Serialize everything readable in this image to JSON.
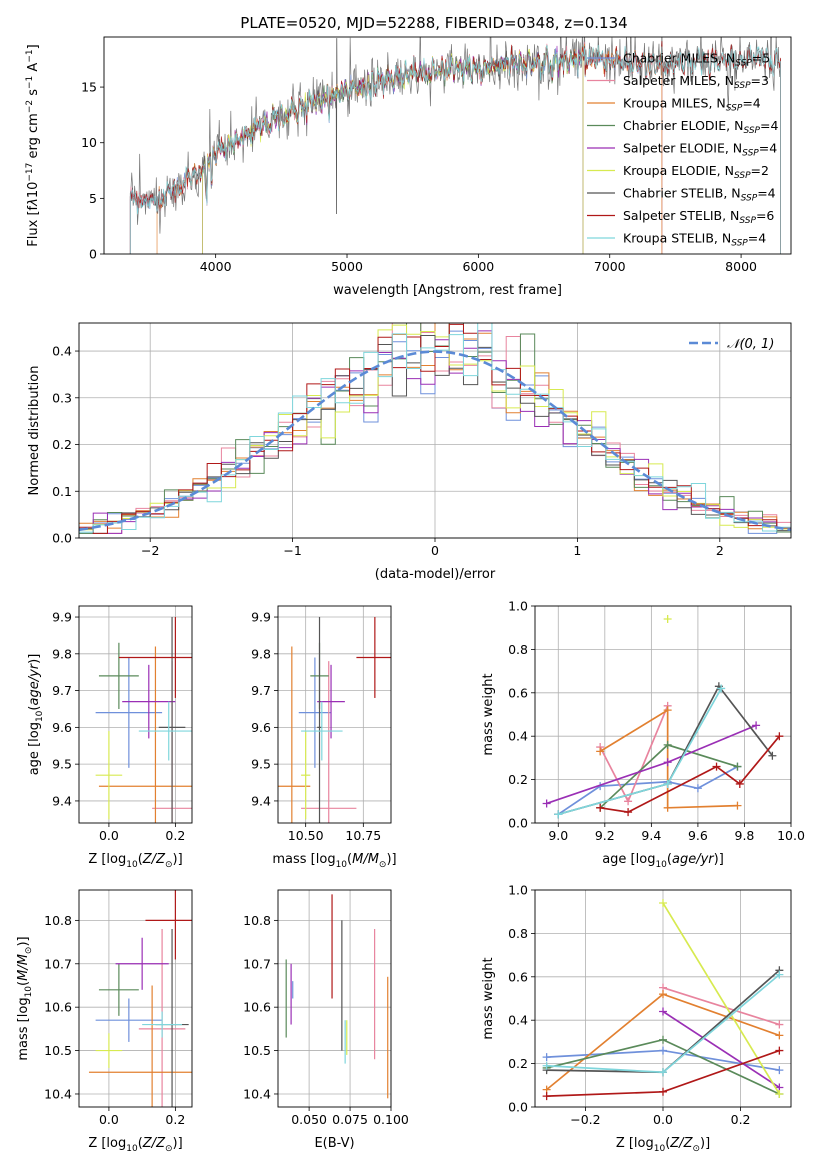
{
  "figure_title": "PLATE=0520, MJD=52288, FIBERID=0348, z=0.134",
  "colors": {
    "Chabrier MILES": "#6f90db",
    "Salpeter MILES": "#e8849e",
    "Kroupa MILES": "#e28030",
    "Chabrier ELODIE": "#5a8a5a",
    "Salpeter ELODIE": "#9a2fb5",
    "Kroupa ELODIE": "#d7ea50",
    "Chabrier STELIB": "#555555",
    "Salpeter STELIB": "#b01818",
    "Kroupa STELIB": "#7fd6dc"
  },
  "chart_data": [
    {
      "id": "spectrum",
      "type": "line",
      "title": "PLATE=0520, MJD=52288, FIBERID=0348, z=0.134",
      "xlabel": "wavelength [Angstrom, rest frame]",
      "ylabel_html": "Flux [f<tspan font-style='italic'>λ</tspan>10<tspan dy='-5' font-size='9'>−17</tspan><tspan dy='5'> erg cm</tspan><tspan dy='-5' font-size='9'>−2</tspan><tspan dy='5'> s</tspan><tspan dy='-5' font-size='9'>−1</tspan><tspan dy='5'> A</tspan><tspan dy='-5' font-size='9'>−1</tspan><tspan dy='5'>]</tspan>",
      "xlim": [
        3150,
        8380
      ],
      "ylim": [
        0,
        19.5
      ],
      "xticks": [
        4000,
        5000,
        6000,
        7000,
        8000
      ],
      "yticks": [
        0,
        5,
        10,
        15
      ],
      "continuum": {
        "x": [
          3350,
          3500,
          3700,
          3800,
          3900,
          4000,
          4200,
          4500,
          4800,
          5000,
          5200,
          5500,
          5800,
          6000,
          6300,
          6600,
          6900,
          7200,
          7500,
          7800,
          8100,
          8300
        ],
        "y": [
          5.2,
          4.6,
          5.9,
          6.8,
          7.6,
          9.0,
          10.4,
          12.4,
          13.8,
          14.8,
          15.5,
          16.2,
          16.6,
          16.8,
          17.2,
          17.3,
          17.5,
          17.2,
          17.0,
          17.3,
          17.4,
          17.5
        ]
      },
      "legend": [
        {
          "label": "Chabrier MILES",
          "n": "5"
        },
        {
          "label": "Salpeter MILES",
          "n": "3"
        },
        {
          "label": "Kroupa MILES",
          "n": "4"
        },
        {
          "label": "Chabrier ELODIE",
          "n": "4"
        },
        {
          "label": "Salpeter ELODIE",
          "n": "4"
        },
        {
          "label": "Kroupa ELODIE",
          "n": "2"
        },
        {
          "label": "Chabrier STELIB",
          "n": "4"
        },
        {
          "label": "Salpeter STELIB",
          "n": "6"
        },
        {
          "label": "Kroupa STELIB",
          "n": "4"
        }
      ],
      "legend_n_prefix": "N",
      "legend_n_sub": "SSP",
      "model_ranges": {
        "Chabrier MILES": [
          3350,
          7400
        ],
        "Salpeter MILES": [
          3350,
          7400
        ],
        "Kroupa MILES": [
          3550,
          7400
        ],
        "Chabrier ELODIE": [
          3900,
          6800
        ],
        "Salpeter ELODIE": [
          3900,
          6800
        ],
        "Kroupa ELODIE": [
          3900,
          6800
        ],
        "Chabrier STELIB": [
          3350,
          8300
        ],
        "Salpeter STELIB": [
          3350,
          8300
        ],
        "Kroupa STELIB": [
          3350,
          8300
        ]
      }
    },
    {
      "id": "residuals",
      "type": "histogram",
      "xlabel": "(data-model)/error",
      "ylabel": "Normed distribution",
      "xlim": [
        -2.5,
        2.5
      ],
      "ylim": [
        0,
        0.46
      ],
      "xticks": [
        -2,
        -1,
        0,
        1,
        2
      ],
      "yticks": [
        0.0,
        0.1,
        0.2,
        0.3,
        0.4
      ],
      "bin_width": 0.1,
      "reference": {
        "label": "𝒩(0, 1)",
        "mean": 0,
        "sigma": 1
      }
    },
    {
      "id": "Z_vs_age",
      "type": "errorbar",
      "xlabel": "Z [log10(Z/Z⊙)]",
      "ylabel": "age  [log10(age/yr)]",
      "xlim": [
        -0.09,
        0.25
      ],
      "ylim": [
        9.34,
        9.93
      ],
      "xticks": [
        0.0,
        0.2
      ],
      "yticks": [
        9.4,
        9.5,
        9.6,
        9.7,
        9.8,
        9.9
      ],
      "points": [
        {
          "model": "Chabrier MILES",
          "x": 0.06,
          "xerr": 0.1,
          "y": 9.64,
          "yerr": 0.15
        },
        {
          "model": "Salpeter MILES",
          "x": 0.19,
          "xerr": 0.06,
          "y": 9.38,
          "yerr": 0.4
        },
        {
          "model": "Kroupa MILES",
          "x": 0.14,
          "xerr": 0.17,
          "y": 9.44,
          "yerr": 0.38
        },
        {
          "model": "Chabrier ELODIE",
          "x": 0.03,
          "xerr": 0.06,
          "y": 9.74,
          "yerr": 0.09
        },
        {
          "model": "Salpeter ELODIE",
          "x": 0.12,
          "xerr": 0.08,
          "y": 9.67,
          "yerr": 0.1
        },
        {
          "model": "Kroupa ELODIE",
          "x": 0.0,
          "xerr": 0.04,
          "y": 9.47,
          "yerr": 0.12
        },
        {
          "model": "Chabrier STELIB",
          "x": 0.19,
          "xerr": 0.04,
          "y": 9.6,
          "yerr": 0.3
        },
        {
          "model": "Salpeter STELIB",
          "x": 0.2,
          "xerr": 0.17,
          "y": 9.79,
          "yerr": 0.11
        },
        {
          "model": "Kroupa STELIB",
          "x": 0.18,
          "xerr": 0.09,
          "y": 9.59,
          "yerr": 0.08
        }
      ]
    },
    {
      "id": "mass_vs_age",
      "type": "errorbar",
      "xlabel": "mass [log10(M/M⊙)]",
      "ylabel": "",
      "xlim": [
        10.38,
        10.87
      ],
      "ylim": [
        9.34,
        9.93
      ],
      "xticks": [
        10.5,
        10.75
      ],
      "yticks": [
        9.4,
        9.5,
        9.6,
        9.7,
        9.8,
        9.9
      ],
      "points": [
        {
          "model": "Chabrier MILES",
          "x": 10.54,
          "xerr": 0.07,
          "y": 9.64,
          "yerr": 0.15
        },
        {
          "model": "Salpeter MILES",
          "x": 10.6,
          "xerr": 0.12,
          "y": 9.38,
          "yerr": 0.4
        },
        {
          "model": "Kroupa MILES",
          "x": 10.44,
          "xerr": 0.08,
          "y": 9.44,
          "yerr": 0.38
        },
        {
          "model": "Chabrier ELODIE",
          "x": 10.56,
          "xerr": 0.04,
          "y": 9.74,
          "yerr": 0.09
        },
        {
          "model": "Salpeter ELODIE",
          "x": 10.61,
          "xerr": 0.06,
          "y": 9.67,
          "yerr": 0.1
        },
        {
          "model": "Kroupa ELODIE",
          "x": 10.5,
          "xerr": 0.02,
          "y": 9.47,
          "yerr": 0.12
        },
        {
          "model": "Chabrier STELIB",
          "x": 10.56,
          "xerr": 0.01,
          "y": 9.6,
          "yerr": 0.3
        },
        {
          "model": "Salpeter STELIB",
          "x": 10.8,
          "xerr": 0.08,
          "y": 9.79,
          "yerr": 0.11
        },
        {
          "model": "Kroupa STELIB",
          "x": 10.57,
          "xerr": 0.09,
          "y": 9.59,
          "yerr": 0.08
        }
      ]
    },
    {
      "id": "age_weights",
      "type": "line",
      "xlabel": "age  [log10(age/yr)]",
      "ylabel": "mass weight",
      "xlim": [
        8.9,
        10.0
      ],
      "ylim": [
        0,
        1.0
      ],
      "xticks": [
        9.0,
        9.2,
        9.4,
        9.6,
        9.8,
        10.0
      ],
      "yticks": [
        0.0,
        0.2,
        0.4,
        0.6,
        0.8,
        1.0
      ],
      "series": [
        {
          "model": "Chabrier MILES",
          "x": [
            9.0,
            9.18,
            9.47,
            9.6,
            9.77
          ],
          "y": [
            0.04,
            0.17,
            0.19,
            0.16,
            0.26
          ]
        },
        {
          "model": "Salpeter MILES",
          "x": [
            9.18,
            9.3,
            9.47
          ],
          "y": [
            0.35,
            0.1,
            0.54
          ]
        },
        {
          "model": "Kroupa MILES",
          "x": [
            9.18,
            9.47,
            9.47,
            9.77
          ],
          "y": [
            0.33,
            0.52,
            0.07,
            0.08
          ]
        },
        {
          "model": "Chabrier ELODIE",
          "x": [
            9.18,
            9.47,
            9.77
          ],
          "y": [
            0.07,
            0.36,
            0.26
          ]
        },
        {
          "model": "Salpeter ELODIE",
          "x": [
            8.95,
            9.47,
            9.85
          ],
          "y": [
            0.09,
            0.28,
            0.45
          ]
        },
        {
          "model": "Kroupa ELODIE",
          "x": [
            9.47
          ],
          "y": [
            0.94
          ]
        },
        {
          "model": "Chabrier STELIB",
          "x": [
            9.0,
            9.47,
            9.69,
            9.92
          ],
          "y": [
            0.04,
            0.18,
            0.63,
            0.31
          ]
        },
        {
          "model": "Salpeter STELIB",
          "x": [
            9.18,
            9.3,
            9.68,
            9.78,
            9.95
          ],
          "y": [
            0.07,
            0.05,
            0.26,
            0.18,
            0.4
          ]
        },
        {
          "model": "Kroupa STELIB",
          "x": [
            9.0,
            9.47,
            9.7
          ],
          "y": [
            0.04,
            0.18,
            0.62
          ]
        }
      ]
    },
    {
      "id": "Z_vs_mass",
      "type": "errorbar",
      "xlabel": "Z [log10(Z/Z⊙)]",
      "ylabel": "mass [log10(M/M⊙)]",
      "xlim": [
        -0.09,
        0.25
      ],
      "ylim": [
        10.37,
        10.87
      ],
      "xticks": [
        0.0,
        0.2
      ],
      "yticks": [
        10.4,
        10.5,
        10.6,
        10.7,
        10.8
      ],
      "points": [
        {
          "model": "Chabrier MILES",
          "x": 0.06,
          "xerr": 0.1,
          "y": 10.57,
          "yerr": 0.05
        },
        {
          "model": "Salpeter MILES",
          "x": 0.16,
          "xerr": 0.07,
          "y": 10.55,
          "yerr": 0.23
        },
        {
          "model": "Kroupa MILES",
          "x": 0.13,
          "xerr": 0.19,
          "y": 10.45,
          "yerr": 0.2
        },
        {
          "model": "Chabrier ELODIE",
          "x": 0.03,
          "xerr": 0.06,
          "y": 10.64,
          "yerr": 0.06
        },
        {
          "model": "Salpeter ELODIE",
          "x": 0.1,
          "xerr": 0.08,
          "y": 10.7,
          "yerr": 0.06
        },
        {
          "model": "Kroupa ELODIE",
          "x": 0.0,
          "xerr": 0.04,
          "y": 10.5,
          "yerr": 0.04
        },
        {
          "model": "Chabrier STELIB",
          "x": 0.19,
          "xerr": 0.05,
          "y": 10.56,
          "yerr": 0.22
        },
        {
          "model": "Salpeter STELIB",
          "x": 0.2,
          "xerr": 0.09,
          "y": 10.8,
          "yerr": 0.09
        },
        {
          "model": "Kroupa STELIB",
          "x": 0.16,
          "xerr": 0.06,
          "y": 10.56,
          "yerr": 0.03
        }
      ]
    },
    {
      "id": "ebv_vs_mass",
      "type": "errorbar",
      "xlabel": "E(B-V)",
      "ylabel": "",
      "xlim": [
        0.031,
        0.1
      ],
      "ylim": [
        10.37,
        10.87
      ],
      "xticks": [
        0.05,
        0.075,
        0.1
      ],
      "xticklabels": [
        "0.050",
        "0.075",
        "0.100"
      ],
      "yticks": [
        10.4,
        10.5,
        10.6,
        10.7,
        10.8
      ],
      "points": [
        {
          "model": "Chabrier MILES",
          "x": 0.04,
          "xerr": 0.0,
          "y": 10.64,
          "yerr": 0.02
        },
        {
          "model": "Salpeter MILES",
          "x": 0.09,
          "xerr": 0.0,
          "y": 10.63,
          "yerr": 0.15
        },
        {
          "model": "Kroupa MILES",
          "x": 0.098,
          "xerr": 0.0,
          "y": 10.53,
          "yerr": 0.14
        },
        {
          "model": "Chabrier ELODIE",
          "x": 0.036,
          "xerr": 0.0,
          "y": 10.62,
          "yerr": 0.09
        },
        {
          "model": "Salpeter ELODIE",
          "x": 0.039,
          "xerr": 0.0,
          "y": 10.63,
          "yerr": 0.07
        },
        {
          "model": "Kroupa ELODIE",
          "x": 0.073,
          "xerr": 0.0,
          "y": 10.53,
          "yerr": 0.04
        },
        {
          "model": "Chabrier STELIB",
          "x": 0.07,
          "xerr": 0.0,
          "y": 10.65,
          "yerr": 0.15
        },
        {
          "model": "Salpeter STELIB",
          "x": 0.064,
          "xerr": 0.0,
          "y": 10.74,
          "yerr": 0.12
        },
        {
          "model": "Kroupa STELIB",
          "x": 0.072,
          "xerr": 0.0,
          "y": 10.52,
          "yerr": 0.05
        }
      ]
    },
    {
      "id": "Z_weights",
      "type": "line",
      "xlabel": "Z [log10(Z/Z⊙)]",
      "ylabel": "mass weight",
      "xlim": [
        -0.33,
        0.33
      ],
      "ylim": [
        0,
        1.0
      ],
      "xticks": [
        -0.2,
        0.0,
        0.2
      ],
      "yticks": [
        0.0,
        0.2,
        0.4,
        0.6,
        0.8,
        1.0
      ],
      "series": [
        {
          "model": "Chabrier MILES",
          "x": [
            -0.3,
            0.0,
            0.3
          ],
          "y": [
            0.23,
            0.26,
            0.17
          ]
        },
        {
          "model": "Salpeter MILES",
          "x": [
            0.0,
            0.3
          ],
          "y": [
            0.55,
            0.38
          ]
        },
        {
          "model": "Kroupa MILES",
          "x": [
            -0.3,
            0.0,
            0.3
          ],
          "y": [
            0.08,
            0.52,
            0.33
          ]
        },
        {
          "model": "Chabrier ELODIE",
          "x": [
            -0.3,
            0.0,
            0.3
          ],
          "y": [
            0.18,
            0.31,
            0.06
          ]
        },
        {
          "model": "Salpeter ELODIE",
          "x": [
            0.0,
            0.3
          ],
          "y": [
            0.44,
            0.09
          ]
        },
        {
          "model": "Kroupa ELODIE",
          "x": [
            0.0,
            0.3
          ],
          "y": [
            0.94,
            0.06
          ]
        },
        {
          "model": "Chabrier STELIB",
          "x": [
            -0.3,
            0.0,
            0.3
          ],
          "y": [
            0.17,
            0.16,
            0.63
          ]
        },
        {
          "model": "Salpeter STELIB",
          "x": [
            -0.3,
            0.0,
            0.3
          ],
          "y": [
            0.05,
            0.07,
            0.26
          ]
        },
        {
          "model": "Kroupa STELIB",
          "x": [
            -0.3,
            0.0,
            0.3
          ],
          "y": [
            0.19,
            0.16,
            0.61
          ]
        }
      ]
    }
  ]
}
